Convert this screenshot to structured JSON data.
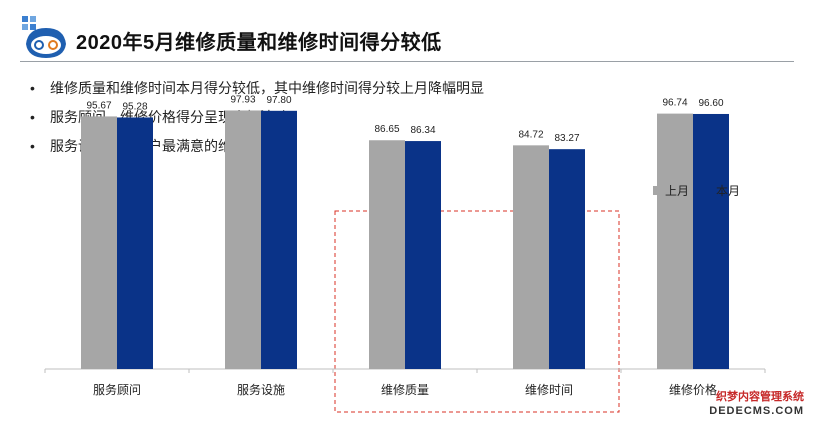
{
  "header": {
    "title": "2020年5月维修质量和维修时间得分较低"
  },
  "bullets": [
    "维修质量和维修时间本月得分较低，其中维修时间得分较上月降幅明显",
    "服务顾问、维修价格得分呈现小幅波动",
    "服务设施仍是客户最满意的维度"
  ],
  "chart_data": {
    "type": "bar",
    "categories": [
      "服务顾问",
      "服务设施",
      "维修质量",
      "维修时间",
      "维修价格"
    ],
    "series": [
      {
        "name": "上月",
        "values": [
          95.67,
          97.93,
          86.65,
          84.72,
          96.74
        ],
        "color": "#a6a6a6"
      },
      {
        "name": "本月",
        "values": [
          95.28,
          97.8,
          86.34,
          83.27,
          96.6
        ],
        "color": "#0a3388"
      }
    ],
    "value_labels": [
      [
        "95.67",
        "97.93",
        "86.65",
        "84.72",
        "96.74"
      ],
      [
        "95.28",
        "97.80",
        "86.34",
        "83.27",
        "96.60"
      ]
    ],
    "ylim": [
      0,
      100
    ],
    "grid": false,
    "legend": "top-right",
    "highlighted_categories": [
      "维修质量",
      "维修时间"
    ],
    "highlight_style": "dashed red box"
  },
  "watermark": {
    "line1": "织梦内容管理系统",
    "line2": "DEDECMS.COM"
  }
}
